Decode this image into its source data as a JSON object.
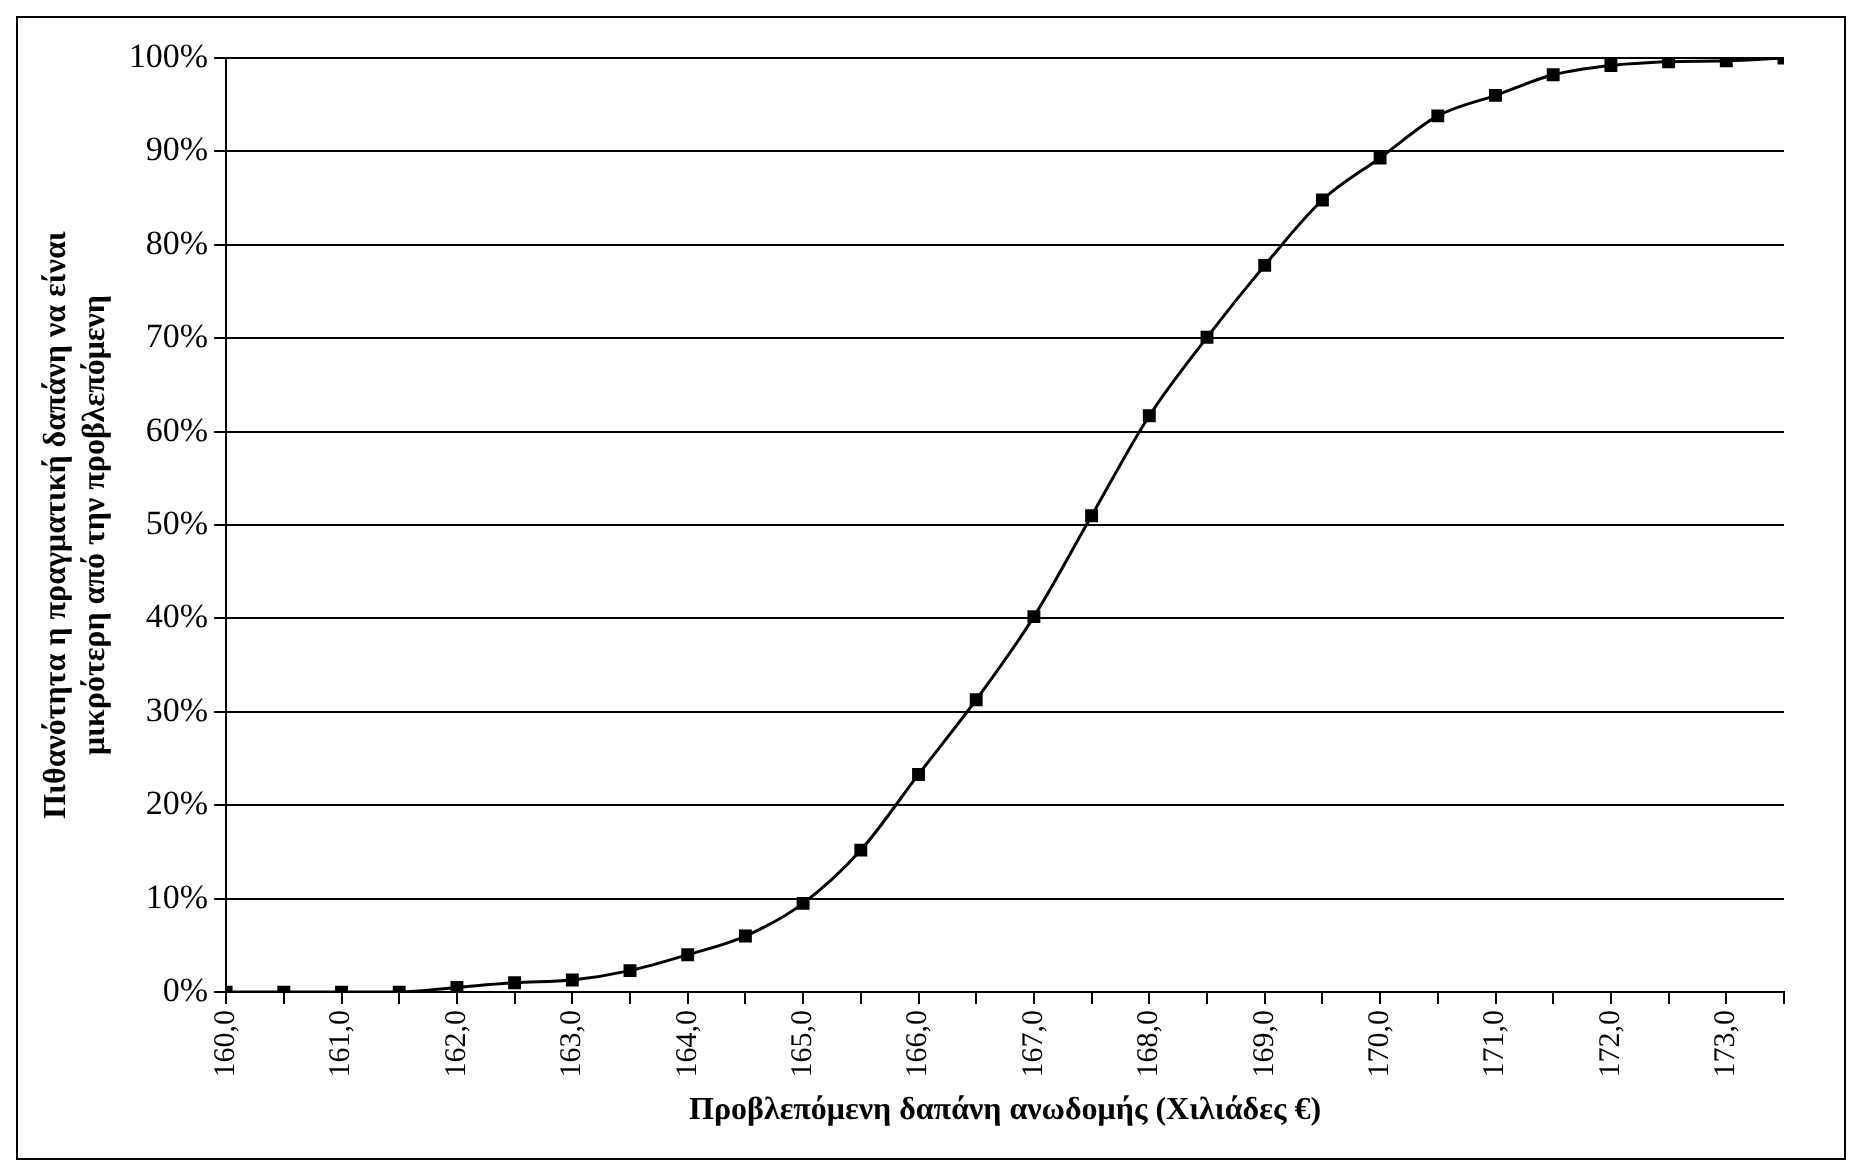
{
  "chart_data": {
    "type": "line",
    "xlabel": "Προβλεπόμενη δαπάνη ανωδομής (Χιλιάδες €)",
    "ylabel": "Πιθανότητα η πραγματική δαπάνη να είναι\nμικρότερη από την προβλεπόμενη",
    "x": [
      160,
      160.5,
      161,
      161.5,
      162,
      162.5,
      163,
      163.5,
      164,
      164.5,
      165,
      165.5,
      166,
      166.5,
      167,
      167.5,
      168,
      168.5,
      169,
      169.5,
      170,
      170.5,
      171,
      171.5,
      172,
      172.5,
      173,
      173.5
    ],
    "series": [
      {
        "color": "#000000",
        "values": [
          0,
          0,
          0,
          0,
          0.5,
          1,
          1.3,
          2.3,
          4,
          6,
          9.5,
          15.2,
          23.3,
          31.3,
          40.2,
          51,
          61.7,
          70.1,
          77.8,
          84.8,
          89.3,
          93.8,
          96,
          98.2,
          99.2,
          99.6,
          99.7,
          100
        ]
      }
    ],
    "xlim": [
      160,
      173.5
    ],
    "xticks": [
      {
        "value": 160,
        "label": "160,0"
      },
      {
        "value": 160.5,
        "label": null
      },
      {
        "value": 161,
        "label": "161,0"
      },
      {
        "value": 161.5,
        "label": null
      },
      {
        "value": 162,
        "label": "162,0"
      },
      {
        "value": 162.5,
        "label": null
      },
      {
        "value": 163,
        "label": "163,0"
      },
      {
        "value": 163.5,
        "label": null
      },
      {
        "value": 164,
        "label": "164,0"
      },
      {
        "value": 164.5,
        "label": null
      },
      {
        "value": 165,
        "label": "165,0"
      },
      {
        "value": 165.5,
        "label": null
      },
      {
        "value": 166,
        "label": "166,0"
      },
      {
        "value": 166.5,
        "label": null
      },
      {
        "value": 167,
        "label": "167,0"
      },
      {
        "value": 167.5,
        "label": null
      },
      {
        "value": 168,
        "label": "168,0"
      },
      {
        "value": 168.5,
        "label": null
      },
      {
        "value": 169,
        "label": "169,0"
      },
      {
        "value": 169.5,
        "label": null
      },
      {
        "value": 170,
        "label": "170,0"
      },
      {
        "value": 170.5,
        "label": null
      },
      {
        "value": 171,
        "label": "171,0"
      },
      {
        "value": 171.5,
        "label": null
      },
      {
        "value": 172,
        "label": "172,0"
      },
      {
        "value": 172.5,
        "label": null
      },
      {
        "value": 173,
        "label": "173,0"
      },
      {
        "value": 173.5,
        "label": null
      }
    ],
    "ylim": [
      0,
      100
    ],
    "yticks": [
      {
        "value": 0,
        "label": "0%"
      },
      {
        "value": 10,
        "label": "10%"
      },
      {
        "value": 20,
        "label": "20%"
      },
      {
        "value": 30,
        "label": "30%"
      },
      {
        "value": 40,
        "label": "40%"
      },
      {
        "value": 50,
        "label": "50%"
      },
      {
        "value": 60,
        "label": "60%"
      },
      {
        "value": 70,
        "label": "70%"
      },
      {
        "value": 80,
        "label": "80%"
      },
      {
        "value": 90,
        "label": "90%"
      },
      {
        "value": 100,
        "label": "100%"
      }
    ],
    "grid": "y",
    "legend": false,
    "marker": "square",
    "line_style": "solid"
  }
}
